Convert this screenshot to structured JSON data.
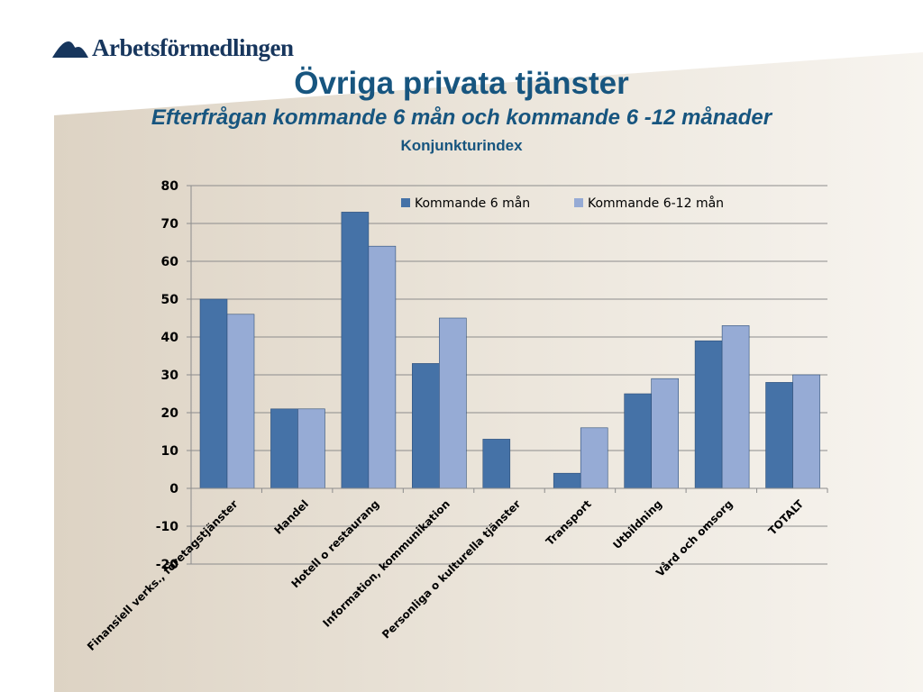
{
  "logo": {
    "text": "Arbetsförmedlingen",
    "icon": "arbetsformedlingen-logo-icon"
  },
  "chart_data": {
    "type": "bar",
    "title": "Övriga privata tjänster",
    "subtitle": "Efterfrågan kommande 6 mån och kommande 6 -12 månader",
    "subsubtitle": "Konjunkturindex",
    "categories": [
      "Finansiell verks., företagstjänster",
      "Handel",
      "Hotell o restaurang",
      "Information, kommunikation",
      "Personliga o kulturella tjänster",
      "Transport",
      "Utbildning",
      "Vård och omsorg",
      "TOTALT"
    ],
    "series": [
      {
        "name": "Kommande 6 mån",
        "color": "#4572a7",
        "values": [
          50,
          21,
          73,
          33,
          13,
          4,
          25,
          39,
          28
        ]
      },
      {
        "name": "Kommande 6-12 mån",
        "color": "#96abd5",
        "values": [
          46,
          21,
          64,
          45,
          0,
          16,
          29,
          43,
          30
        ]
      }
    ],
    "ylim": [
      -20,
      80
    ],
    "yticks": [
      "80",
      "70",
      "60",
      "50",
      "40",
      "30",
      "20",
      "10",
      "0",
      "-10",
      "-20"
    ],
    "grid": true,
    "legend": "top-right"
  }
}
